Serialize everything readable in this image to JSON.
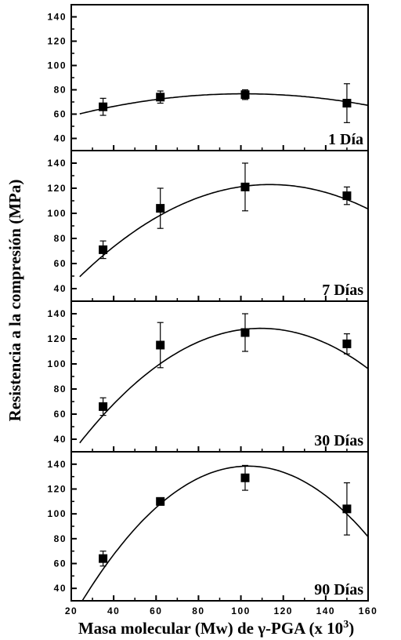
{
  "chart_data": {
    "type": "scatter",
    "xlabel": "Masa molecular (Mw) de γ-PGA (x 10",
    "xlabel_superscript": "3",
    "xlabel_suffix": ")",
    "ylabel": "Resistencia a la compresión (MPa)",
    "xlim": [
      20,
      160
    ],
    "x_ticks": [
      20,
      40,
      60,
      80,
      100,
      120,
      140,
      160
    ],
    "marker": "square",
    "fit": "quadratic",
    "panels": [
      {
        "label": "1 Día",
        "ylim": [
          30,
          150
        ],
        "y_ticks": [
          40,
          60,
          80,
          100,
          120,
          140
        ],
        "points": [
          {
            "x": 35,
            "y": 66,
            "err": 7
          },
          {
            "x": 62,
            "y": 74,
            "err": 5
          },
          {
            "x": 102,
            "y": 76,
            "err": 4
          },
          {
            "x": 150,
            "y": 69,
            "err": 16
          }
        ],
        "fit_coeffs": [
          48.4,
          0.5587,
          -0.002757
        ]
      },
      {
        "label": "7 Días",
        "ylim": [
          30,
          150
        ],
        "y_ticks": [
          40,
          60,
          80,
          100,
          120,
          140
        ],
        "points": [
          {
            "x": 35,
            "y": 71,
            "err": 7
          },
          {
            "x": 62,
            "y": 104,
            "err": 16
          },
          {
            "x": 102,
            "y": 121,
            "err": 19
          },
          {
            "x": 150,
            "y": 114,
            "err": 7
          }
        ],
        "fit_coeffs": [
          5.0,
          2.0734,
          -0.009113
        ]
      },
      {
        "label": "30 Días",
        "ylim": [
          30,
          150
        ],
        "y_ticks": [
          40,
          60,
          80,
          100,
          120,
          140
        ],
        "points": [
          {
            "x": 35,
            "y": 66,
            "err": 7
          },
          {
            "x": 62,
            "y": 115,
            "err": 18
          },
          {
            "x": 102,
            "y": 125,
            "err": 15
          },
          {
            "x": 150,
            "y": 116,
            "err": 8
          }
        ],
        "fit_coeffs": [
          -21.5,
          2.7406,
          -0.012531
        ]
      },
      {
        "label": "90 Días",
        "ylim": [
          30,
          150
        ],
        "y_ticks": [
          40,
          60,
          80,
          100,
          120,
          140
        ],
        "points": [
          {
            "x": 35,
            "y": 64,
            "err": 6
          },
          {
            "x": 62,
            "y": 110,
            "err": 3
          },
          {
            "x": 102,
            "y": 129,
            "err": 10
          },
          {
            "x": 150,
            "y": 104,
            "err": 21
          }
        ],
        "fit_coeffs": [
          -51.2,
          3.6687,
          -0.017745
        ]
      }
    ]
  }
}
